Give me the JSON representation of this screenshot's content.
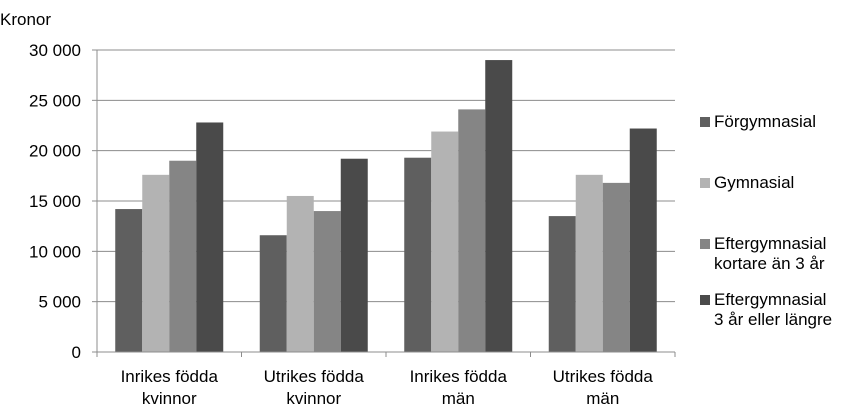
{
  "chart_data": {
    "type": "bar",
    "ylabel": "Kronor",
    "ylim": [
      0,
      30000
    ],
    "yticks": [
      0,
      5000,
      10000,
      15000,
      20000,
      25000,
      30000
    ],
    "ytick_labels": [
      "0",
      "5 000",
      "10 000",
      "15 000",
      "20 000",
      "25 000",
      "30 000"
    ],
    "grid": true,
    "legend_position": "right",
    "categories": [
      "Inrikes födda\nkvinnor",
      "Utrikes födda\nkvinnor",
      "Inrikes födda\nmän",
      "Utrikes födda\nmän"
    ],
    "series": [
      {
        "name": "Förgymnasial",
        "color": "#5f5f5f",
        "values": [
          14200,
          11600,
          19300,
          13500
        ]
      },
      {
        "name": "Gymnasial",
        "color": "#b3b3b3",
        "values": [
          17600,
          15500,
          21900,
          17600
        ]
      },
      {
        "name": "Eftergymnasial\nkortare än 3 år",
        "color": "#858585",
        "values": [
          19000,
          14000,
          24100,
          16800
        ]
      },
      {
        "name": "Eftergymnasial\n3 år eller längre",
        "color": "#4a4a4a",
        "values": [
          22800,
          19200,
          29000,
          22200
        ]
      }
    ]
  }
}
